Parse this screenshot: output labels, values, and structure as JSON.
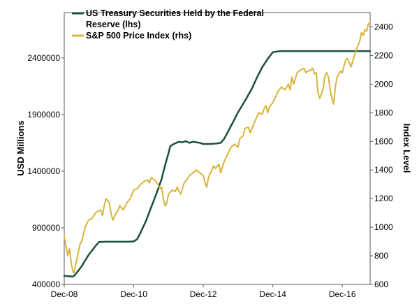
{
  "chart_data": {
    "type": "line",
    "x_ticks": [
      "Dec-08",
      "Dec-10",
      "Dec-12",
      "Dec-14",
      "Dec-16"
    ],
    "xlim": [
      0,
      8.8
    ],
    "left_axis": {
      "label": "USD Millions",
      "range": [
        400000,
        2800000
      ],
      "ticks": [
        "400000",
        "900000",
        "1400000",
        "1900000",
        "2400000"
      ]
    },
    "right_axis": {
      "label": "Index Level",
      "range": [
        600,
        2500
      ],
      "ticks": [
        "600",
        "800",
        "1000",
        "1200",
        "1400",
        "1600",
        "1800",
        "2000",
        "2200",
        "2400"
      ]
    },
    "legend": {
      "position": "top-left",
      "entry_1": "US Treasury Securities Held by the Federal",
      "entry_1_line2": "Reserve (lhs)",
      "entry_2": "S&P 500 Price Index (rhs)"
    },
    "series": [
      {
        "name": "US Treasury Securities Held by the Federal Reserve (lhs)",
        "axis": "left",
        "color": "#1a4f3c",
        "points": [
          [
            0,
            475000
          ],
          [
            0.25,
            470000
          ],
          [
            0.3,
            480000
          ],
          [
            0.5,
            560000
          ],
          [
            0.7,
            660000
          ],
          [
            0.9,
            740000
          ],
          [
            1.0,
            775000
          ],
          [
            1.2,
            777000
          ],
          [
            1.6,
            777000
          ],
          [
            1.85,
            777000
          ],
          [
            2.0,
            780000
          ],
          [
            2.1,
            800000
          ],
          [
            2.2,
            860000
          ],
          [
            2.35,
            960000
          ],
          [
            2.5,
            1080000
          ],
          [
            2.65,
            1200000
          ],
          [
            2.8,
            1330000
          ],
          [
            2.9,
            1450000
          ],
          [
            3.0,
            1560000
          ],
          [
            3.05,
            1620000
          ],
          [
            3.15,
            1640000
          ],
          [
            3.3,
            1660000
          ],
          [
            3.4,
            1655000
          ],
          [
            3.5,
            1665000
          ],
          [
            3.6,
            1650000
          ],
          [
            3.7,
            1660000
          ],
          [
            3.8,
            1655000
          ],
          [
            3.9,
            1650000
          ],
          [
            4.0,
            1640000
          ],
          [
            4.2,
            1640000
          ],
          [
            4.4,
            1645000
          ],
          [
            4.5,
            1650000
          ],
          [
            4.6,
            1685000
          ],
          [
            4.75,
            1770000
          ],
          [
            4.9,
            1860000
          ],
          [
            5.0,
            1920000
          ],
          [
            5.2,
            2020000
          ],
          [
            5.4,
            2130000
          ],
          [
            5.55,
            2230000
          ],
          [
            5.7,
            2320000
          ],
          [
            5.85,
            2390000
          ],
          [
            6.0,
            2450000
          ],
          [
            6.2,
            2460000
          ],
          [
            7.0,
            2460000
          ],
          [
            8.0,
            2460000
          ],
          [
            8.8,
            2460000
          ]
        ]
      },
      {
        "name": "S&P 500 Price Index (rhs)",
        "axis": "right",
        "color": "#d8b43a",
        "points": [
          [
            0,
            940
          ],
          [
            0.05,
            870
          ],
          [
            0.1,
            800
          ],
          [
            0.15,
            850
          ],
          [
            0.2,
            750
          ],
          [
            0.25,
            690
          ],
          [
            0.28,
            680
          ],
          [
            0.35,
            760
          ],
          [
            0.45,
            880
          ],
          [
            0.5,
            900
          ],
          [
            0.55,
            950
          ],
          [
            0.6,
            1000
          ],
          [
            0.7,
            1050
          ],
          [
            0.8,
            1060
          ],
          [
            0.9,
            1100
          ],
          [
            1.0,
            1115
          ],
          [
            1.05,
            1120
          ],
          [
            1.1,
            1080
          ],
          [
            1.15,
            1150
          ],
          [
            1.2,
            1200
          ],
          [
            1.3,
            1170
          ],
          [
            1.35,
            1090
          ],
          [
            1.4,
            1050
          ],
          [
            1.45,
            1080
          ],
          [
            1.55,
            1120
          ],
          [
            1.6,
            1150
          ],
          [
            1.7,
            1120
          ],
          [
            1.8,
            1170
          ],
          [
            1.9,
            1200
          ],
          [
            2.0,
            1260
          ],
          [
            2.1,
            1270
          ],
          [
            2.2,
            1300
          ],
          [
            2.3,
            1320
          ],
          [
            2.4,
            1330
          ],
          [
            2.45,
            1310
          ],
          [
            2.5,
            1345
          ],
          [
            2.55,
            1340
          ],
          [
            2.6,
            1330
          ],
          [
            2.7,
            1300
          ],
          [
            2.75,
            1270
          ],
          [
            2.8,
            1280
          ],
          [
            2.85,
            1200
          ],
          [
            2.9,
            1150
          ],
          [
            2.95,
            1170
          ],
          [
            3.0,
            1230
          ],
          [
            3.1,
            1260
          ],
          [
            3.2,
            1250
          ],
          [
            3.25,
            1280
          ],
          [
            3.35,
            1230
          ],
          [
            3.45,
            1310
          ],
          [
            3.55,
            1340
          ],
          [
            3.6,
            1360
          ],
          [
            3.7,
            1380
          ],
          [
            3.8,
            1400
          ],
          [
            3.9,
            1380
          ],
          [
            4.0,
            1360
          ],
          [
            4.05,
            1310
          ],
          [
            4.1,
            1280
          ],
          [
            4.15,
            1350
          ],
          [
            4.25,
            1400
          ],
          [
            4.3,
            1430
          ],
          [
            4.35,
            1410
          ],
          [
            4.45,
            1440
          ],
          [
            4.5,
            1380
          ],
          [
            4.55,
            1420
          ],
          [
            4.6,
            1460
          ],
          [
            4.7,
            1510
          ],
          [
            4.8,
            1560
          ],
          [
            4.9,
            1580
          ],
          [
            5.0,
            1560
          ],
          [
            5.05,
            1620
          ],
          [
            5.15,
            1640
          ],
          [
            5.2,
            1690
          ],
          [
            5.3,
            1700
          ],
          [
            5.35,
            1660
          ],
          [
            5.45,
            1720
          ],
          [
            5.5,
            1750
          ],
          [
            5.6,
            1800
          ],
          [
            5.7,
            1790
          ],
          [
            5.75,
            1830
          ],
          [
            5.8,
            1850
          ],
          [
            5.85,
            1800
          ],
          [
            5.9,
            1840
          ],
          [
            6.0,
            1870
          ],
          [
            6.1,
            1920
          ],
          [
            6.15,
            1950
          ],
          [
            6.25,
            1980
          ],
          [
            6.35,
            1960
          ],
          [
            6.45,
            2000
          ],
          [
            6.5,
            1960
          ],
          [
            6.55,
            2050
          ],
          [
            6.6,
            2000
          ],
          [
            6.7,
            2080
          ],
          [
            6.8,
            2100
          ],
          [
            6.9,
            2110
          ],
          [
            6.95,
            2080
          ],
          [
            7.0,
            2090
          ],
          [
            7.1,
            2100
          ],
          [
            7.15,
            2110
          ],
          [
            7.2,
            2070
          ],
          [
            7.25,
            2080
          ],
          [
            7.3,
            1940
          ],
          [
            7.35,
            1900
          ],
          [
            7.4,
            1930
          ],
          [
            7.45,
            1970
          ],
          [
            7.5,
            2060
          ],
          [
            7.55,
            2080
          ],
          [
            7.6,
            2050
          ],
          [
            7.65,
            1960
          ],
          [
            7.7,
            1900
          ],
          [
            7.75,
            1860
          ],
          [
            7.8,
            1980
          ],
          [
            7.85,
            2050
          ],
          [
            7.9,
            2070
          ],
          [
            7.95,
            2090
          ],
          [
            8.0,
            2080
          ],
          [
            8.05,
            2130
          ],
          [
            8.1,
            2170
          ],
          [
            8.15,
            2180
          ],
          [
            8.2,
            2150
          ],
          [
            8.25,
            2120
          ],
          [
            8.3,
            2160
          ],
          [
            8.35,
            2200
          ],
          [
            8.4,
            2240
          ],
          [
            8.45,
            2270
          ],
          [
            8.5,
            2300
          ],
          [
            8.55,
            2360
          ],
          [
            8.6,
            2340
          ],
          [
            8.65,
            2380
          ],
          [
            8.7,
            2370
          ],
          [
            8.75,
            2420
          ],
          [
            8.8,
            2430
          ]
        ]
      }
    ]
  }
}
